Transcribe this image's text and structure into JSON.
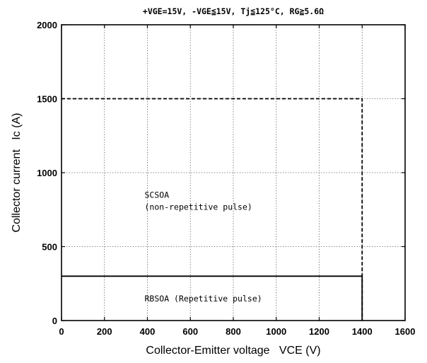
{
  "chart_data": {
    "type": "line",
    "title": "+VGE=15V, -VGE≦15V, Tj≦125°C, RG≧5.6Ω",
    "xlabel": "Collector-Emitter voltage   VCE (V)",
    "ylabel": "Collector current   Ic (A)",
    "xlim": [
      0,
      1600
    ],
    "ylim": [
      0,
      2000
    ],
    "xticks": [
      0,
      200,
      400,
      600,
      800,
      1000,
      1200,
      1400,
      1600
    ],
    "yticks": [
      0,
      500,
      1000,
      1500,
      2000
    ],
    "grid": true,
    "series": [
      {
        "name": "SCSOA",
        "style": "dashed",
        "x": [
          0,
          1400,
          1400
        ],
        "y": [
          1500,
          1500,
          0
        ]
      },
      {
        "name": "RBSOA",
        "style": "solid",
        "x": [
          0,
          1400,
          1400
        ],
        "y": [
          300,
          300,
          0
        ]
      }
    ],
    "annotations": [
      {
        "lines": [
          "SCSOA",
          "(non-repetitive pulse)"
        ],
        "x": 400,
        "y": 830
      },
      {
        "lines": [
          "RBSOA (Repetitive pulse)"
        ],
        "x": 400,
        "y": 130
      }
    ]
  }
}
